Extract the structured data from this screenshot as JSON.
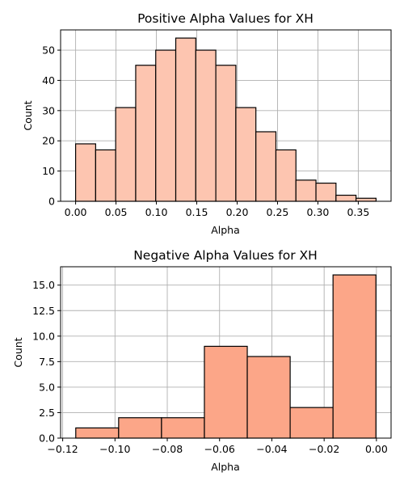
{
  "chart_data": [
    {
      "type": "bar",
      "title": "Positive Alpha Values for XH",
      "xlabel": "Alpha",
      "ylabel": "Count",
      "bar_color": "#fdc5b0",
      "bin_edges": [
        0.0,
        0.0248,
        0.0496,
        0.0744,
        0.0992,
        0.124,
        0.1488,
        0.1736,
        0.1984,
        0.2232,
        0.248,
        0.2728,
        0.2976,
        0.3224,
        0.3472,
        0.372
      ],
      "values": [
        19,
        17,
        31,
        45,
        50,
        54,
        50,
        45,
        31,
        23,
        17,
        7,
        6,
        2,
        1
      ],
      "xlim": [
        -0.0186,
        0.3906
      ],
      "ylim": [
        0,
        56.7
      ],
      "xticks": [
        0.0,
        0.05,
        0.1,
        0.15,
        0.2,
        0.25,
        0.3,
        0.35
      ],
      "xtick_labels": [
        "0.00",
        "0.05",
        "0.10",
        "0.15",
        "0.20",
        "0.25",
        "0.30",
        "0.35"
      ],
      "yticks": [
        0,
        10,
        20,
        30,
        40,
        50
      ],
      "ytick_labels": [
        "0",
        "10",
        "20",
        "30",
        "40",
        "50"
      ],
      "grid": true
    },
    {
      "type": "bar",
      "title": "Negative Alpha Values for XH",
      "xlabel": "Alpha",
      "ylabel": "Count",
      "bar_color": "#fca688",
      "bin_edges": [
        -0.115,
        -0.0986,
        -0.0822,
        -0.0658,
        -0.0494,
        -0.033,
        -0.0166,
        -0.0002
      ],
      "values": [
        1,
        2,
        2,
        9,
        8,
        3,
        16
      ],
      "xlim": [
        -0.1208,
        0.0056
      ],
      "ylim": [
        0,
        16.8
      ],
      "xticks": [
        -0.12,
        -0.1,
        -0.08,
        -0.06,
        -0.04,
        -0.02,
        0.0
      ],
      "xtick_labels": [
        "−0.12",
        "−0.10",
        "−0.08",
        "−0.06",
        "−0.04",
        "−0.02",
        "0.00"
      ],
      "yticks": [
        0,
        2.5,
        5,
        7.5,
        10,
        12.5,
        15
      ],
      "ytick_labels": [
        "0.0",
        "2.5",
        "5.0",
        "7.5",
        "10.0",
        "12.5",
        "15.0"
      ],
      "grid": true
    }
  ]
}
